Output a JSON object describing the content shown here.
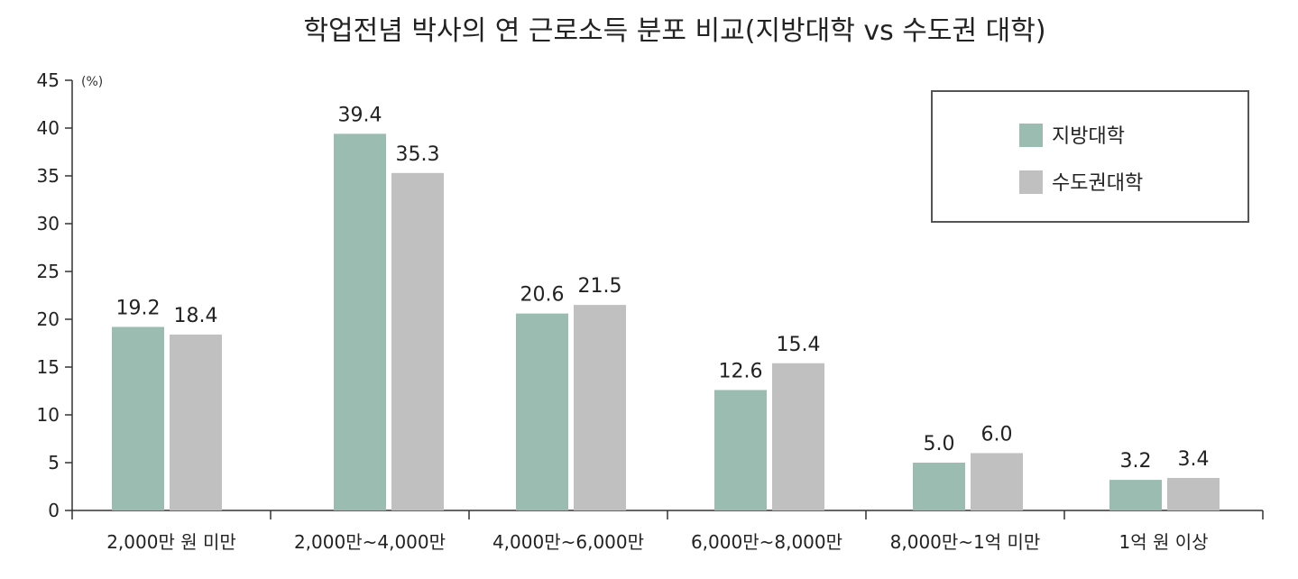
{
  "chart_data": {
    "type": "bar",
    "title": "학업전념 박사의 연 근로소득 분포 비교(지방대학 vs 수도권 대학)",
    "unit_label": "(%)",
    "xlabel": "",
    "ylabel": "",
    "ylim": [
      0,
      45
    ],
    "yticks": [
      0,
      5,
      10,
      15,
      20,
      25,
      30,
      35,
      40,
      45
    ],
    "grid": false,
    "legend_position": "top-right",
    "categories": [
      "2,000만 원 미만",
      "2,000만~4,000만",
      "4,000만~6,000만",
      "6,000만~8,000만",
      "8,000만~1억 미만",
      "1억 원 이상"
    ],
    "value_labels": [
      [
        "19.2",
        "18.4"
      ],
      [
        "39.4",
        "35.3"
      ],
      [
        "20.6",
        "21.5"
      ],
      [
        "12.6",
        "15.4"
      ],
      [
        "5.0",
        "6.0"
      ],
      [
        "3.2",
        "3.4"
      ]
    ],
    "series": [
      {
        "name": "지방대학",
        "color": "#9bbcb1",
        "values": [
          19.2,
          39.4,
          20.6,
          12.6,
          5.0,
          3.2
        ]
      },
      {
        "name": "수도권대학",
        "color": "#c0c0c0",
        "values": [
          18.4,
          35.3,
          21.5,
          15.4,
          6.0,
          3.4
        ]
      }
    ]
  }
}
